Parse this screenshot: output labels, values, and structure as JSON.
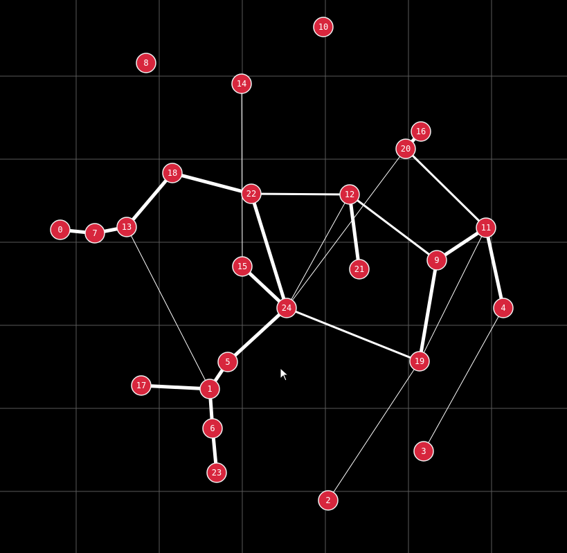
{
  "graph": {
    "colors": {
      "background": "#000000",
      "grid": "#5a5a5a",
      "node_fill": "#d7263d",
      "node_stroke": "#f2f2f2",
      "edge": "#ffffff",
      "label": "#ffffff"
    },
    "nodes": [
      {
        "id": "0",
        "label": "0"
      },
      {
        "id": "1",
        "label": "1"
      },
      {
        "id": "2",
        "label": "2"
      },
      {
        "id": "3",
        "label": "3"
      },
      {
        "id": "4",
        "label": "4"
      },
      {
        "id": "5",
        "label": "5"
      },
      {
        "id": "6",
        "label": "6"
      },
      {
        "id": "7",
        "label": "7"
      },
      {
        "id": "8",
        "label": "8"
      },
      {
        "id": "9",
        "label": "9"
      },
      {
        "id": "10",
        "label": "10"
      },
      {
        "id": "11",
        "label": "11"
      },
      {
        "id": "12",
        "label": "12"
      },
      {
        "id": "13",
        "label": "13"
      },
      {
        "id": "14",
        "label": "14"
      },
      {
        "id": "15",
        "label": "15"
      },
      {
        "id": "16",
        "label": "16"
      },
      {
        "id": "17",
        "label": "17"
      },
      {
        "id": "18",
        "label": "18"
      },
      {
        "id": "19",
        "label": "19"
      },
      {
        "id": "20",
        "label": "20"
      },
      {
        "id": "21",
        "label": "21"
      },
      {
        "id": "22",
        "label": "22"
      },
      {
        "id": "23",
        "label": "23"
      },
      {
        "id": "24",
        "label": "24"
      }
    ],
    "edges": [
      {
        "from": "0",
        "to": "7",
        "weight": "heavy"
      },
      {
        "from": "7",
        "to": "13",
        "weight": "heavy"
      },
      {
        "from": "13",
        "to": "18",
        "weight": "heavy"
      },
      {
        "from": "13",
        "to": "1",
        "weight": "thin"
      },
      {
        "from": "18",
        "to": "22",
        "weight": "heavy"
      },
      {
        "from": "14",
        "to": "15",
        "weight": "thin"
      },
      {
        "from": "22",
        "to": "12",
        "weight": "medium"
      },
      {
        "from": "22",
        "to": "24",
        "weight": "heavy"
      },
      {
        "from": "15",
        "to": "24",
        "weight": "heavy"
      },
      {
        "from": "12",
        "to": "21",
        "weight": "heavy"
      },
      {
        "from": "12",
        "to": "9",
        "weight": "medium"
      },
      {
        "from": "12",
        "to": "24",
        "weight": "thin"
      },
      {
        "from": "20",
        "to": "24",
        "weight": "thin"
      },
      {
        "from": "20",
        "to": "16",
        "weight": "heavy"
      },
      {
        "from": "20",
        "to": "11",
        "weight": "medium"
      },
      {
        "from": "11",
        "to": "9",
        "weight": "heavy"
      },
      {
        "from": "11",
        "to": "4",
        "weight": "heavy"
      },
      {
        "from": "11",
        "to": "19",
        "weight": "thin"
      },
      {
        "from": "9",
        "to": "19",
        "weight": "heavy"
      },
      {
        "from": "24",
        "to": "19",
        "weight": "medium"
      },
      {
        "from": "24",
        "to": "5",
        "weight": "heavy"
      },
      {
        "from": "5",
        "to": "1",
        "weight": "heavy"
      },
      {
        "from": "17",
        "to": "1",
        "weight": "heavy"
      },
      {
        "from": "1",
        "to": "6",
        "weight": "heavy"
      },
      {
        "from": "6",
        "to": "23",
        "weight": "heavy"
      },
      {
        "from": "19",
        "to": "2",
        "weight": "thin"
      },
      {
        "from": "4",
        "to": "3",
        "weight": "thin"
      }
    ]
  }
}
